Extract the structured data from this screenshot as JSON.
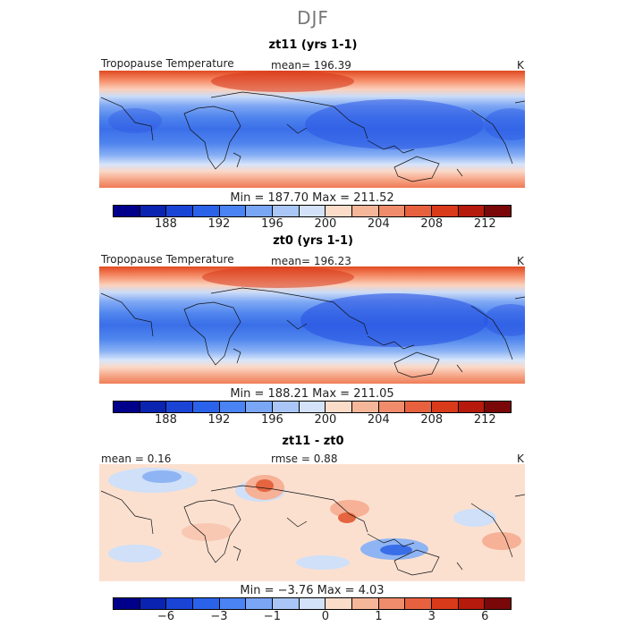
{
  "figure": {
    "title": "DJF",
    "units": "K"
  },
  "panels": [
    {
      "title": "zt11 (yrs 1-1)",
      "left_label": "Tropopause Temperature",
      "center_label": "mean= 196.39",
      "right_label": "K",
      "minmax": "Min = 187.70 Max = 211.52",
      "colorbar": {
        "colors": [
          "#00008b",
          "#0a23b0",
          "#1a44d6",
          "#2a62ea",
          "#4a84f4",
          "#7aa6f6",
          "#a9c6f6",
          "#d3e2f8",
          "#fbdcc9",
          "#f6b69a",
          "#f08c6c",
          "#e8613f",
          "#d83a1a",
          "#b51a0c",
          "#7a0808"
        ],
        "ticks": [
          "188",
          "192",
          "196",
          "200",
          "204",
          "208",
          "212"
        ]
      }
    },
    {
      "title": "zt0 (yrs 1-1)",
      "left_label": "Tropopause Temperature",
      "center_label": "mean= 196.23",
      "right_label": "K",
      "minmax": "Min = 188.21 Max = 211.05",
      "colorbar": {
        "colors": [
          "#00008b",
          "#0a23b0",
          "#1a44d6",
          "#2a62ea",
          "#4a84f4",
          "#7aa6f6",
          "#a9c6f6",
          "#d3e2f8",
          "#fbdcc9",
          "#f6b69a",
          "#f08c6c",
          "#e8613f",
          "#d83a1a",
          "#b51a0c",
          "#7a0808"
        ],
        "ticks": [
          "188",
          "192",
          "196",
          "200",
          "204",
          "208",
          "212"
        ]
      }
    },
    {
      "title": "zt11 - zt0",
      "left_label": "mean = 0.16",
      "center_label": "rmse = 0.88",
      "right_label": "K",
      "minmax": "Min = −3.76 Max = 4.03",
      "colorbar": {
        "colors": [
          "#00008b",
          "#0a23b0",
          "#1a44d6",
          "#2a62ea",
          "#4a84f4",
          "#7aa6f6",
          "#a9c6f6",
          "#d3e2f8",
          "#fbdcc9",
          "#f6b69a",
          "#f08c6c",
          "#e8613f",
          "#d83a1a",
          "#b51a0c",
          "#7a0808"
        ],
        "ticks": [
          "−6",
          "−3",
          "−1",
          "0",
          "1",
          "3",
          "6"
        ]
      }
    }
  ]
}
